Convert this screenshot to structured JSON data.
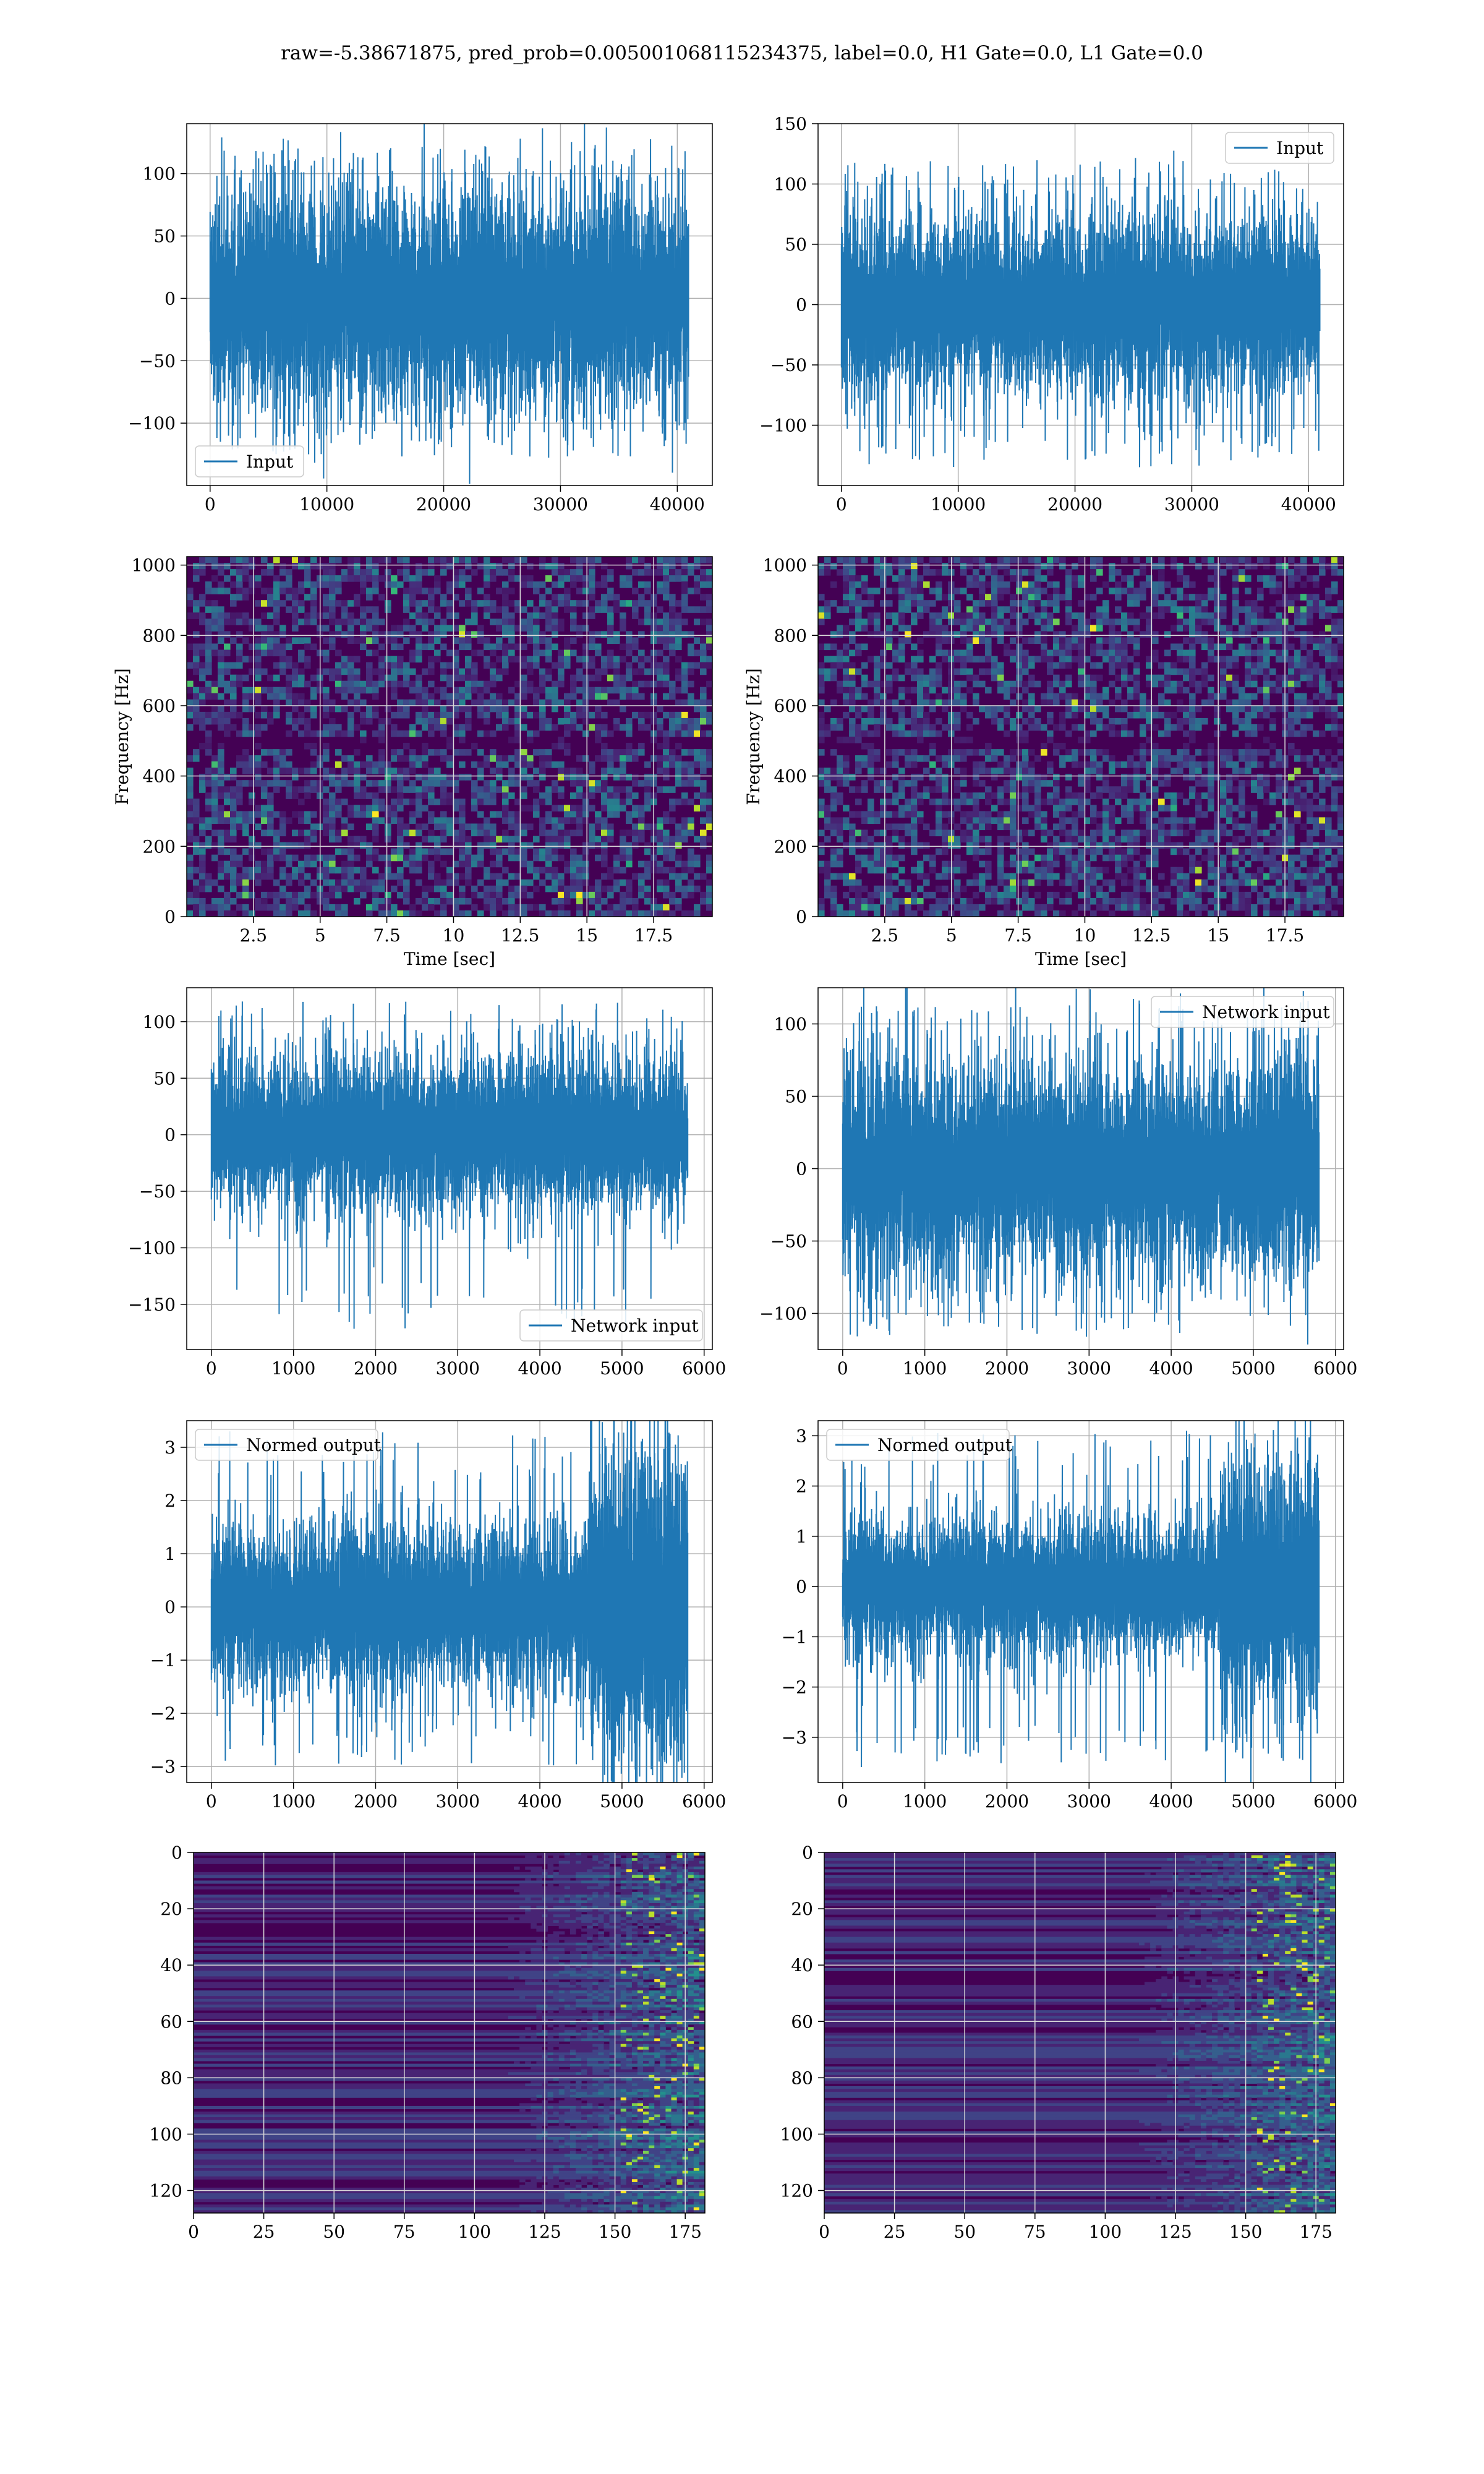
{
  "title": "raw=-5.38671875, pred_prob=0.005001068115234375, label=0.0, H1 Gate=0.0, L1 Gate=0.0",
  "colors": {
    "line": "#1f77b4",
    "viridis_bg": "#440154",
    "grid": "#b0b0b0"
  },
  "chart_data": [
    {
      "id": "r1c1",
      "type": "line",
      "series": [
        {
          "name": "Input",
          "values_description_free": true,
          "n": 40960,
          "std": 26,
          "peak_min": -128,
          "peak_max": 128
        }
      ],
      "legend": "lower-left",
      "xlim": [
        -2000,
        43000
      ],
      "ylim": [
        -150,
        140
      ],
      "xticks": [
        0,
        10000,
        20000,
        30000,
        40000
      ],
      "yticks": [
        -100,
        -50,
        0,
        50,
        100
      ],
      "grid": true
    },
    {
      "id": "r1c2",
      "type": "line",
      "series": [
        {
          "name": "Input",
          "n": 40960,
          "std": 22,
          "peak_min": -135,
          "peak_max": 120
        }
      ],
      "legend": "upper-right",
      "xlim": [
        -2000,
        43000
      ],
      "ylim": [
        -150,
        150
      ],
      "xticks": [
        0,
        10000,
        20000,
        30000,
        40000
      ],
      "yticks": [
        -100,
        -50,
        0,
        50,
        100,
        150
      ],
      "grid": true
    },
    {
      "id": "r2c1",
      "type": "heatmap",
      "xlabel": "Time [sec]",
      "ylabel": "Frequency [Hz]",
      "xlim": [
        0,
        19.7
      ],
      "ylim": [
        0,
        1024
      ],
      "xticks": [
        2.5,
        5.0,
        7.5,
        10.0,
        12.5,
        15.0,
        17.5
      ],
      "yticks": [
        0,
        200,
        400,
        600,
        800,
        1000
      ],
      "grid": true
    },
    {
      "id": "r2c2",
      "type": "heatmap",
      "xlabel": "Time [sec]",
      "ylabel": "Frequency [Hz]",
      "xlim": [
        0,
        19.7
      ],
      "ylim": [
        0,
        1024
      ],
      "xticks": [
        2.5,
        5.0,
        7.5,
        10.0,
        12.5,
        15.0,
        17.5
      ],
      "yticks": [
        0,
        200,
        400,
        600,
        800,
        1000
      ],
      "grid": true
    },
    {
      "id": "r3c1",
      "type": "line",
      "series": [
        {
          "name": "Network input",
          "n": 5800,
          "std": 20,
          "peak_min": -175,
          "peak_max": 118
        }
      ],
      "legend": "lower-right",
      "xlim": [
        -300,
        6100
      ],
      "ylim": [
        -190,
        130
      ],
      "xticks": [
        0,
        1000,
        2000,
        3000,
        4000,
        5000,
        6000
      ],
      "yticks": [
        -150,
        -100,
        -50,
        0,
        50,
        100
      ],
      "grid": true
    },
    {
      "id": "r3c2",
      "type": "line",
      "series": [
        {
          "name": "Network input",
          "n": 5800,
          "std": 22,
          "peak_min": -115,
          "peak_max": 117
        }
      ],
      "legend": "upper-right",
      "xlim": [
        -300,
        6100
      ],
      "ylim": [
        -125,
        125
      ],
      "xticks": [
        0,
        1000,
        2000,
        3000,
        4000,
        5000,
        6000
      ],
      "yticks": [
        -100,
        -50,
        0,
        50,
        100
      ],
      "grid": true
    },
    {
      "id": "r4c1",
      "type": "line",
      "series": [
        {
          "name": "Normed output",
          "n": 5800,
          "std": 0.45,
          "peak_min": -3.0,
          "peak_max": 3.3
        }
      ],
      "legend": "upper-left",
      "xlim": [
        -300,
        6100
      ],
      "ylim": [
        -3.3,
        3.5
      ],
      "xticks": [
        0,
        1000,
        2000,
        3000,
        4000,
        5000,
        6000
      ],
      "yticks": [
        -3,
        -2,
        -1,
        0,
        1,
        2,
        3
      ],
      "grid": true
    },
    {
      "id": "r4c2",
      "type": "line",
      "series": [
        {
          "name": "Normed output",
          "n": 5800,
          "std": 0.4,
          "peak_min": -3.6,
          "peak_max": 3.1
        }
      ],
      "legend": "upper-left",
      "xlim": [
        -300,
        6100
      ],
      "ylim": [
        -3.9,
        3.3
      ],
      "xticks": [
        0,
        1000,
        2000,
        3000,
        4000,
        5000,
        6000
      ],
      "yticks": [
        -3,
        -2,
        -1,
        0,
        1,
        2,
        3
      ],
      "grid": true
    },
    {
      "id": "r5c1",
      "type": "heatmap",
      "xlim": [
        0,
        182
      ],
      "ylim": [
        128,
        0
      ],
      "xticks": [
        0,
        25,
        50,
        75,
        100,
        125,
        150,
        175
      ],
      "yticks": [
        0,
        20,
        40,
        60,
        80,
        100,
        120
      ],
      "grid": true
    },
    {
      "id": "r5c2",
      "type": "heatmap",
      "xlim": [
        0,
        182
      ],
      "ylim": [
        128,
        0
      ],
      "xticks": [
        0,
        25,
        50,
        75,
        100,
        125,
        150,
        175
      ],
      "yticks": [
        0,
        20,
        40,
        60,
        80,
        100,
        120
      ],
      "grid": true
    }
  ]
}
